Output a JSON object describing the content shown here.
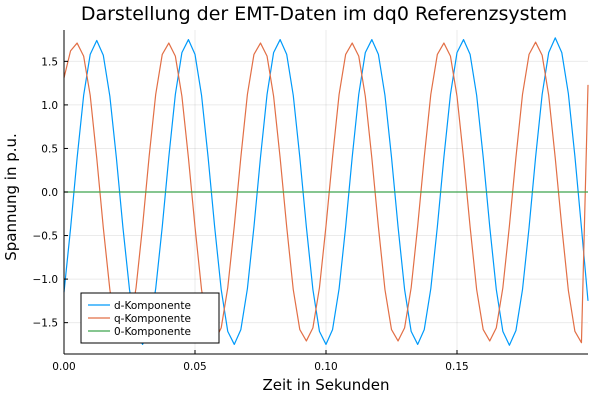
{
  "chart_data": {
    "type": "line",
    "title": "Darstellung der EMT-Daten im dq0 Referenzsystem",
    "xlabel": "Zeit in Sekunden",
    "ylabel": "Spannung in p.u.",
    "xlim": [
      0,
      0.2
    ],
    "ylim": [
      -1.86,
      1.86
    ],
    "xticks": [
      0,
      0.05,
      0.1,
      0.15
    ],
    "xtick_labels": [
      "0.00",
      "0.05",
      "0.10",
      "0.15"
    ],
    "yticks": [
      -1.5,
      -1.0,
      -0.5,
      0.0,
      0.5,
      1.0,
      1.5
    ],
    "ytick_labels": [
      "−1.5",
      "−1.0",
      "−0.5",
      "0.0",
      "0.5",
      "1.0",
      "1.5"
    ],
    "grid": true,
    "legend_position": "bottom-left",
    "series": [
      {
        "name": "d-Komponente",
        "color": "#009AFA",
        "x": [
          0,
          0.0025,
          0.005,
          0.0075,
          0.01,
          0.0125,
          0.015,
          0.0175,
          0.02,
          0.0225,
          0.025,
          0.0275,
          0.03,
          0.0325,
          0.035,
          0.0375,
          0.04,
          0.0425,
          0.045,
          0.0475,
          0.05,
          0.0525,
          0.055,
          0.0575,
          0.06,
          0.0625,
          0.065,
          0.0675,
          0.07,
          0.0725,
          0.075,
          0.0775,
          0.08,
          0.0825,
          0.085,
          0.0875,
          0.09,
          0.0925,
          0.095,
          0.0975,
          0.1,
          0.1025,
          0.105,
          0.1075,
          0.11,
          0.1125,
          0.115,
          0.1175,
          0.12,
          0.1225,
          0.125,
          0.1275,
          0.13,
          0.1325,
          0.135,
          0.1375,
          0.14,
          0.1425,
          0.145,
          0.1475,
          0.15,
          0.1525,
          0.155,
          0.1575,
          0.16,
          0.1625,
          0.165,
          0.1675,
          0.17,
          0.1725,
          0.175,
          0.1775,
          0.18,
          0.1825,
          0.185,
          0.1875,
          0.19,
          0.1925,
          0.195,
          0.1975,
          0.2
        ],
        "y": [
          -1.15,
          -0.42,
          0.39,
          1.11,
          1.58,
          1.74,
          1.57,
          1.1,
          0.39,
          -0.41,
          -1.12,
          -1.6,
          -1.75,
          -1.58,
          -1.11,
          -0.4,
          0.4,
          1.12,
          1.6,
          1.75,
          1.58,
          1.11,
          0.4,
          -0.4,
          -1.12,
          -1.6,
          -1.75,
          -1.58,
          -1.11,
          -0.4,
          0.4,
          1.12,
          1.6,
          1.75,
          1.58,
          1.11,
          0.4,
          -0.4,
          -1.12,
          -1.6,
          -1.75,
          -1.58,
          -1.11,
          -0.4,
          0.4,
          1.12,
          1.6,
          1.75,
          1.58,
          1.11,
          0.4,
          -0.4,
          -1.12,
          -1.6,
          -1.75,
          -1.58,
          -1.11,
          -0.4,
          0.4,
          1.12,
          1.6,
          1.75,
          1.58,
          1.11,
          0.4,
          -0.4,
          -1.12,
          -1.6,
          -1.76,
          -1.59,
          -1.12,
          -0.41,
          0.4,
          1.12,
          1.6,
          1.77,
          1.6,
          1.13,
          0.41,
          -0.41,
          -1.25
        ]
      },
      {
        "name": "q-Komponente",
        "color": "#E26F46",
        "x": [
          0,
          0.0025,
          0.005,
          0.0075,
          0.01,
          0.0125,
          0.015,
          0.0175,
          0.02,
          0.0225,
          0.025,
          0.0275,
          0.03,
          0.0325,
          0.035,
          0.0375,
          0.04,
          0.0425,
          0.045,
          0.0475,
          0.05,
          0.0525,
          0.055,
          0.0575,
          0.06,
          0.0625,
          0.065,
          0.0675,
          0.07,
          0.0725,
          0.075,
          0.0775,
          0.08,
          0.0825,
          0.085,
          0.0875,
          0.09,
          0.0925,
          0.095,
          0.0975,
          0.1,
          0.1025,
          0.105,
          0.1075,
          0.11,
          0.1125,
          0.115,
          0.1175,
          0.12,
          0.1225,
          0.125,
          0.1275,
          0.13,
          0.1325,
          0.135,
          0.1375,
          0.14,
          0.1425,
          0.145,
          0.1475,
          0.15,
          0.1525,
          0.155,
          0.1575,
          0.16,
          0.1625,
          0.165,
          0.1675,
          0.17,
          0.1725,
          0.175,
          0.1775,
          0.18,
          0.1825,
          0.185,
          0.1875,
          0.19,
          0.1925,
          0.195,
          0.1975,
          0.2
        ],
        "y": [
          1.31,
          1.62,
          1.71,
          1.56,
          1.11,
          0.39,
          -0.41,
          -1.12,
          -1.6,
          -1.72,
          -1.56,
          -1.1,
          -0.39,
          0.41,
          1.12,
          1.58,
          1.71,
          1.56,
          1.1,
          0.39,
          -0.4,
          -1.12,
          -1.58,
          -1.71,
          -1.56,
          -1.1,
          -0.39,
          0.4,
          1.12,
          1.58,
          1.71,
          1.56,
          1.1,
          0.39,
          -0.4,
          -1.12,
          -1.58,
          -1.71,
          -1.56,
          -1.1,
          -0.39,
          0.4,
          1.12,
          1.58,
          1.71,
          1.56,
          1.1,
          0.39,
          -0.4,
          -1.12,
          -1.58,
          -1.71,
          -1.56,
          -1.1,
          -0.39,
          0.4,
          1.12,
          1.58,
          1.71,
          1.56,
          1.1,
          0.39,
          -0.4,
          -1.12,
          -1.58,
          -1.71,
          -1.56,
          -1.1,
          -0.39,
          0.4,
          1.12,
          1.58,
          1.72,
          1.57,
          1.11,
          0.39,
          -0.4,
          -1.13,
          -1.6,
          -1.73,
          1.23
        ]
      },
      {
        "name": "0-Komponente",
        "color": "#3EA44E",
        "x": [
          0,
          0.2
        ],
        "y": [
          0,
          0
        ]
      }
    ]
  }
}
